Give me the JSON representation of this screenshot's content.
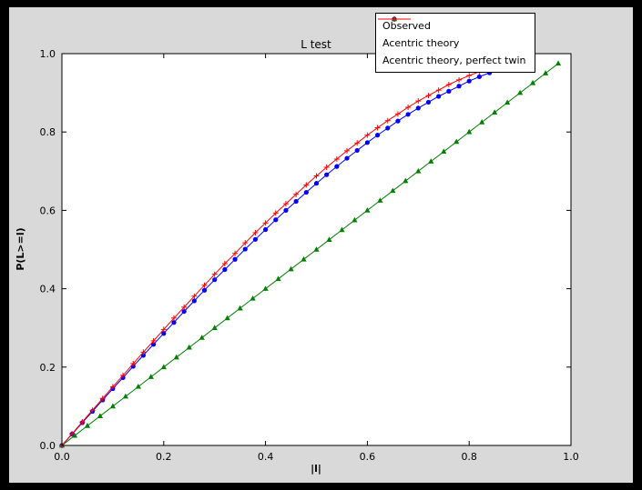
{
  "window": {
    "outer_bg": "#000000",
    "figure_bg": "#d9d9d9",
    "axes_bg": "#ffffff"
  },
  "chart_data": {
    "type": "line",
    "title": "L test",
    "xlabel": "|l|",
    "ylabel": "P(L>=l)",
    "xlim": [
      0,
      1
    ],
    "ylim": [
      0,
      1
    ],
    "xticks": [
      0.0,
      0.2,
      0.4,
      0.6,
      0.8,
      1.0
    ],
    "yticks": [
      0.0,
      0.2,
      0.4,
      0.6,
      0.8,
      1.0
    ],
    "grid": false,
    "legend_position": "upper right",
    "series": [
      {
        "name": "Observed",
        "color": "#0000ff",
        "marker": "circle",
        "x": [
          0,
          0.02,
          0.04,
          0.06,
          0.08,
          0.1,
          0.12,
          0.14,
          0.16,
          0.18,
          0.2,
          0.22,
          0.24,
          0.26,
          0.28,
          0.3,
          0.32,
          0.34,
          0.36,
          0.38,
          0.4,
          0.42,
          0.44,
          0.46,
          0.48,
          0.5,
          0.52,
          0.54,
          0.56,
          0.58,
          0.6,
          0.62,
          0.64,
          0.66,
          0.68,
          0.7,
          0.72,
          0.74,
          0.76,
          0.78,
          0.8,
          0.82,
          0.84,
          0.86
        ],
        "y": [
          0,
          0.029,
          0.058,
          0.087,
          0.116,
          0.145,
          0.173,
          0.202,
          0.23,
          0.258,
          0.286,
          0.314,
          0.342,
          0.369,
          0.396,
          0.423,
          0.449,
          0.475,
          0.501,
          0.526,
          0.551,
          0.576,
          0.6,
          0.623,
          0.646,
          0.669,
          0.691,
          0.712,
          0.733,
          0.753,
          0.773,
          0.792,
          0.81,
          0.828,
          0.845,
          0.861,
          0.876,
          0.891,
          0.904,
          0.917,
          0.93,
          0.941,
          0.951,
          0.961
        ]
      },
      {
        "name": "Acentric theory",
        "color": "#008000",
        "marker": "triangle",
        "x": [
          0,
          0.025,
          0.05,
          0.075,
          0.1,
          0.125,
          0.15,
          0.175,
          0.2,
          0.225,
          0.25,
          0.275,
          0.3,
          0.325,
          0.35,
          0.375,
          0.4,
          0.425,
          0.45,
          0.475,
          0.5,
          0.525,
          0.55,
          0.575,
          0.6,
          0.625,
          0.65,
          0.675,
          0.7,
          0.725,
          0.75,
          0.775,
          0.8,
          0.825,
          0.85,
          0.875,
          0.9,
          0.925,
          0.95,
          0.975
        ],
        "y": [
          0,
          0.025,
          0.05,
          0.075,
          0.1,
          0.125,
          0.15,
          0.175,
          0.2,
          0.225,
          0.25,
          0.275,
          0.3,
          0.325,
          0.35,
          0.375,
          0.4,
          0.425,
          0.45,
          0.475,
          0.5,
          0.525,
          0.55,
          0.575,
          0.6,
          0.625,
          0.65,
          0.675,
          0.7,
          0.725,
          0.75,
          0.775,
          0.8,
          0.825,
          0.85,
          0.875,
          0.9,
          0.925,
          0.95,
          0.975
        ]
      },
      {
        "name": "Acentric theory, perfect twin",
        "color": "#ff0000",
        "marker": "plus",
        "x": [
          0,
          0.02,
          0.04,
          0.06,
          0.08,
          0.1,
          0.12,
          0.14,
          0.16,
          0.18,
          0.2,
          0.22,
          0.24,
          0.26,
          0.28,
          0.3,
          0.32,
          0.34,
          0.36,
          0.38,
          0.4,
          0.42,
          0.44,
          0.46,
          0.48,
          0.5,
          0.52,
          0.54,
          0.56,
          0.58,
          0.6,
          0.62,
          0.64,
          0.66,
          0.68,
          0.7,
          0.72,
          0.74,
          0.76,
          0.78,
          0.8,
          0.82,
          0.84
        ],
        "y": [
          0,
          0.03,
          0.06,
          0.09,
          0.12,
          0.15,
          0.179,
          0.209,
          0.238,
          0.267,
          0.296,
          0.325,
          0.353,
          0.381,
          0.409,
          0.437,
          0.464,
          0.49,
          0.517,
          0.543,
          0.568,
          0.593,
          0.617,
          0.641,
          0.665,
          0.688,
          0.71,
          0.731,
          0.752,
          0.772,
          0.792,
          0.811,
          0.829,
          0.846,
          0.863,
          0.879,
          0.893,
          0.907,
          0.921,
          0.933,
          0.944,
          0.954,
          0.964
        ]
      }
    ]
  }
}
